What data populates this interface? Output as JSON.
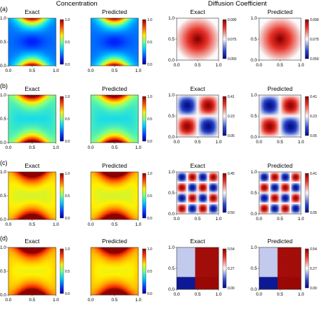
{
  "figure": {
    "headers": {
      "concentration": "Concentration",
      "diffusion": "Diffusion Coefficient"
    }
  },
  "chart_data": {
    "type": "heatmap",
    "colormaps": {
      "concentration": "jet",
      "diffusion": "blue-white-red"
    },
    "panel_titles": [
      "Exact",
      "Predicted",
      "Exact",
      "Predicted"
    ],
    "xlim": [
      0.0,
      1.0
    ],
    "ylim": [
      0.0,
      1.0
    ],
    "x_ticks": [
      "0.0",
      "0.5",
      "1.0"
    ],
    "y_ticks": [
      "0.0",
      "0.5",
      "1.0"
    ],
    "rows": [
      {
        "label": "(a)",
        "diffusion_pattern": "radial",
        "colorbars": [
          {
            "ticks": [
              "1.0",
              "0.5",
              "0.0"
            ]
          },
          {
            "ticks": [
              "1.0",
              "0.5",
              "0.0"
            ]
          },
          {
            "ticks": [
              "0.090",
              "0.075",
              "0.050"
            ]
          },
          {
            "ticks": [
              "0.090",
              "0.075",
              "0.050"
            ]
          }
        ]
      },
      {
        "label": "(b)",
        "diffusion_pattern": "checker-1",
        "colorbars": [
          {
            "ticks": [
              "1.0",
              "0.5",
              "0.0"
            ]
          },
          {
            "ticks": [
              "1.0",
              "0.5",
              "0.0"
            ]
          },
          {
            "ticks": [
              "0.41",
              "0.23",
              "0.05"
            ]
          },
          {
            "ticks": [
              "0.41",
              "0.23",
              "0.05"
            ]
          }
        ]
      },
      {
        "label": "(c)",
        "diffusion_pattern": "checker-2",
        "colorbars": [
          {
            "ticks": [
              "1.0",
              "0.5",
              "0.0"
            ]
          },
          {
            "ticks": [
              "1.0",
              "0.5",
              "0.0"
            ]
          },
          {
            "ticks": [
              "0.45",
              "0.50"
            ]
          },
          {
            "ticks": [
              "0.41",
              "0.05"
            ]
          }
        ]
      },
      {
        "label": "(d)",
        "diffusion_pattern": "step",
        "colorbars": [
          {
            "ticks": [
              "1.0",
              "0.5",
              "0.0"
            ]
          },
          {
            "ticks": [
              "1.0",
              "0.5",
              "0.0"
            ]
          },
          {
            "ticks": [
              "0.54",
              "0.27",
              "0.00"
            ]
          },
          {
            "ticks": [
              "0.54",
              "0.27",
              "0.00"
            ]
          }
        ]
      }
    ]
  }
}
